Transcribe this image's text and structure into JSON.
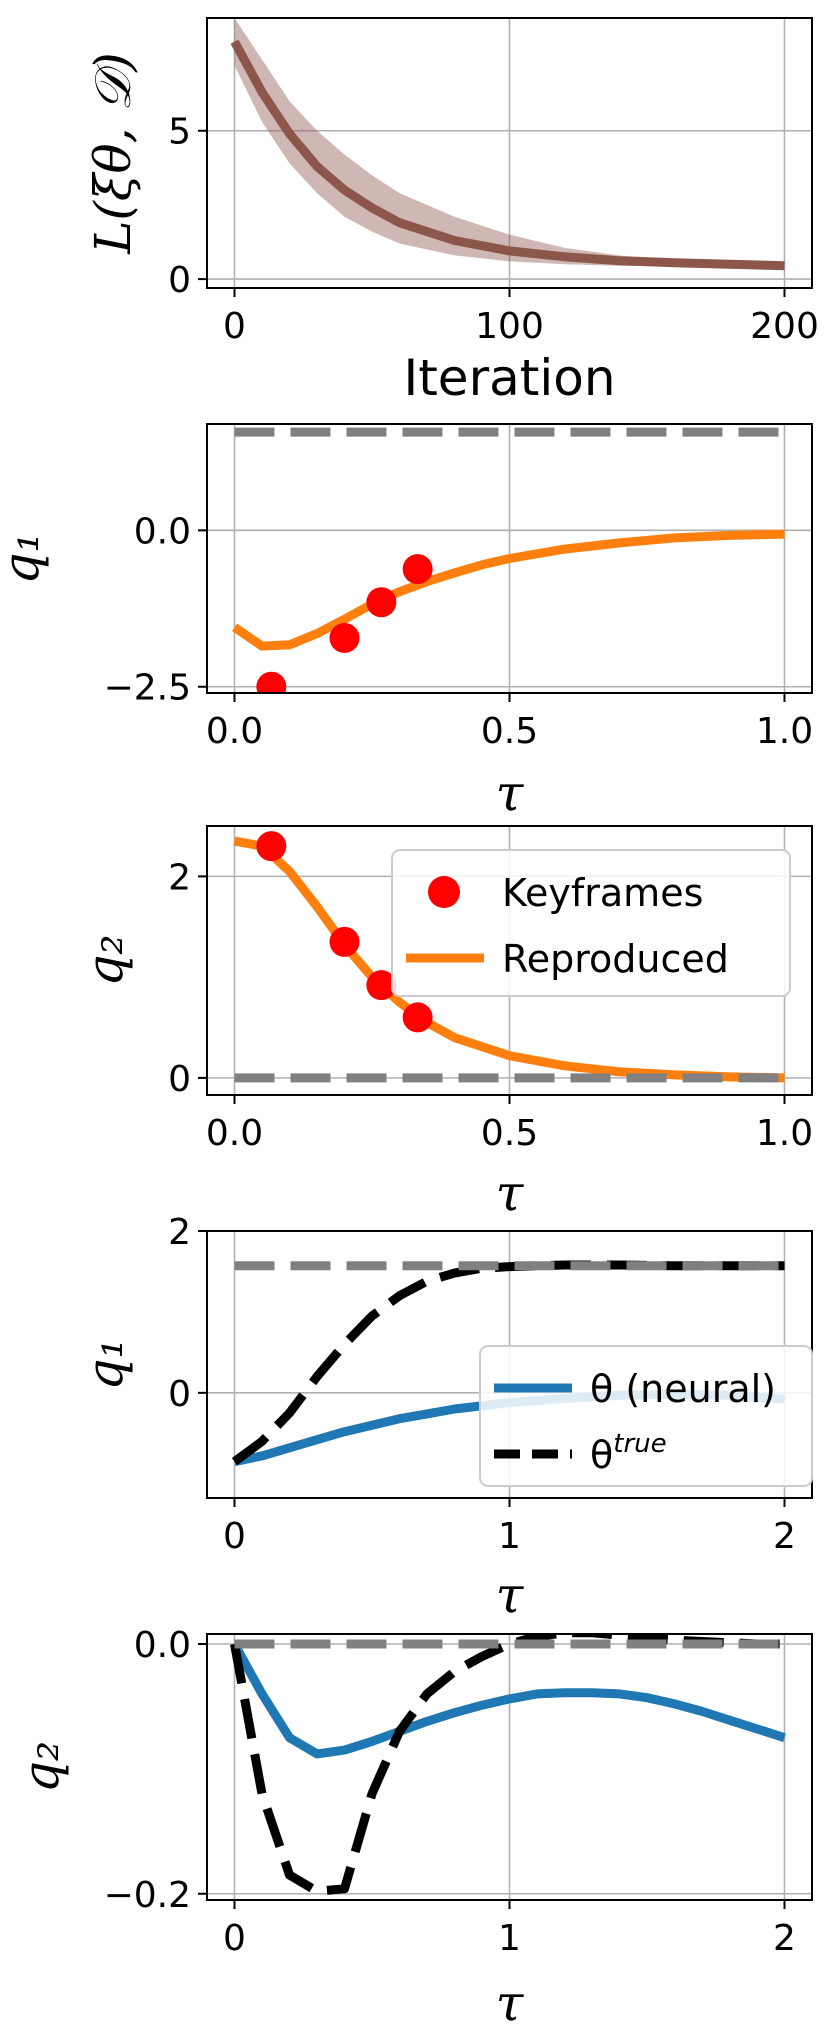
{
  "chart_data": [
    {
      "type": "line",
      "xlabel": "Iteration",
      "ylabel": "L(ξθ, 𝒟)",
      "xlim": [
        -10,
        210
      ],
      "ylim": [
        -0.3,
        8.8
      ],
      "xticks": [
        0,
        100,
        200
      ],
      "xtick_labels": [
        "0",
        "100",
        "200"
      ],
      "yticks": [
        0,
        5
      ],
      "ytick_labels": [
        "0",
        "5"
      ],
      "grid": true,
      "series": [
        {
          "color": "#8c564b",
          "band": true,
          "x": [
            0,
            10,
            20,
            30,
            40,
            50,
            60,
            80,
            100,
            120,
            140,
            160,
            180,
            200
          ],
          "y": [
            8.0,
            6.3,
            4.9,
            3.8,
            3.0,
            2.4,
            1.9,
            1.3,
            0.95,
            0.75,
            0.62,
            0.55,
            0.5,
            0.45
          ],
          "y_lower": [
            7.2,
            5.3,
            3.9,
            2.9,
            2.1,
            1.6,
            1.2,
            0.8,
            0.6,
            0.5,
            0.45,
            0.42,
            0.4,
            0.38
          ],
          "y_upper": [
            8.8,
            7.4,
            6.0,
            5.0,
            4.2,
            3.5,
            2.9,
            2.1,
            1.5,
            1.05,
            0.8,
            0.65,
            0.55,
            0.5
          ]
        }
      ]
    },
    {
      "type": "line",
      "xlabel": "τ",
      "ylabel": "q₁",
      "xlim": [
        -0.05,
        1.05
      ],
      "ylim": [
        -2.6,
        1.7
      ],
      "xticks": [
        0,
        0.5,
        1
      ],
      "xtick_labels": [
        "0.0",
        "0.5",
        "1.0"
      ],
      "yticks": [
        -2.5,
        0
      ],
      "ytick_labels": [
        "−2.5",
        "0.0"
      ],
      "grid": true,
      "series": [
        {
          "name": "Reproduced",
          "color": "#ff7f0e",
          "x": [
            0,
            0.05,
            0.1,
            0.15,
            0.2,
            0.25,
            0.3,
            0.35,
            0.4,
            0.45,
            0.5,
            0.6,
            0.7,
            0.8,
            0.9,
            1.0
          ],
          "y": [
            -1.55,
            -1.85,
            -1.83,
            -1.65,
            -1.42,
            -1.18,
            -0.98,
            -0.82,
            -0.68,
            -0.55,
            -0.45,
            -0.3,
            -0.2,
            -0.12,
            -0.08,
            -0.06
          ]
        },
        {
          "name": "Keyframes",
          "color": "#ff0000",
          "style": "scatter",
          "x": [
            0.067,
            0.2,
            0.267,
            0.333
          ],
          "y": [
            -2.5,
            -1.72,
            -1.15,
            -0.62
          ]
        },
        {
          "color": "#808080",
          "style": "dashed",
          "x": [
            0,
            1
          ],
          "y": [
            1.57,
            1.57
          ]
        }
      ]
    },
    {
      "type": "line",
      "xlabel": "τ",
      "ylabel": "q₂",
      "xlim": [
        -0.05,
        1.05
      ],
      "ylim": [
        -0.17,
        2.5
      ],
      "xticks": [
        0,
        0.5,
        1
      ],
      "xtick_labels": [
        "0.0",
        "0.5",
        "1.0"
      ],
      "yticks": [
        0,
        2
      ],
      "ytick_labels": [
        "0",
        "2"
      ],
      "grid": true,
      "legend": "upper right",
      "series": [
        {
          "name": "Reproduced",
          "color": "#ff7f0e",
          "x": [
            0,
            0.05,
            0.1,
            0.15,
            0.2,
            0.25,
            0.3,
            0.35,
            0.4,
            0.5,
            0.6,
            0.7,
            0.8,
            0.9,
            1.0
          ],
          "y": [
            2.35,
            2.3,
            2.05,
            1.7,
            1.32,
            1.0,
            0.75,
            0.55,
            0.4,
            0.22,
            0.12,
            0.06,
            0.03,
            0.01,
            0.0
          ],
          "style": "line"
        },
        {
          "name": "Keyframes",
          "color": "#ff0000",
          "style": "scatter",
          "x": [
            0.067,
            0.2,
            0.267,
            0.333
          ],
          "y": [
            2.3,
            1.35,
            0.92,
            0.6
          ]
        },
        {
          "color": "#808080",
          "style": "dashed",
          "x": [
            0,
            1
          ],
          "y": [
            0,
            0
          ]
        }
      ]
    },
    {
      "type": "line",
      "xlabel": "τ",
      "ylabel": "q₁",
      "xlim": [
        -0.1,
        2.1
      ],
      "ylim": [
        -1.3,
        2.0
      ],
      "xticks": [
        0,
        1,
        2
      ],
      "xtick_labels": [
        "0",
        "1",
        "2"
      ],
      "yticks": [
        0,
        2
      ],
      "ytick_labels": [
        "0",
        "2"
      ],
      "grid": true,
      "legend": "center right",
      "series": [
        {
          "name": "θ (neural)",
          "color": "#1f77b4",
          "x": [
            0,
            0.1,
            0.2,
            0.3,
            0.4,
            0.5,
            0.6,
            0.7,
            0.8,
            0.9,
            1.0,
            1.2,
            1.4,
            1.6,
            1.8,
            2.0
          ],
          "y": [
            -0.85,
            -0.78,
            -0.68,
            -0.58,
            -0.48,
            -0.4,
            -0.32,
            -0.26,
            -0.2,
            -0.16,
            -0.12,
            -0.07,
            -0.03,
            -0.02,
            -0.03,
            -0.08
          ]
        },
        {
          "name": "θ",
          "name_superscript": "true",
          "color": "#000000",
          "style": "dashed",
          "x": [
            0,
            0.1,
            0.2,
            0.3,
            0.4,
            0.5,
            0.6,
            0.7,
            0.8,
            0.9,
            1.0,
            1.2,
            1.4,
            1.6,
            1.8,
            2.0
          ],
          "y": [
            -0.85,
            -0.6,
            -0.25,
            0.2,
            0.6,
            0.95,
            1.2,
            1.38,
            1.48,
            1.54,
            1.56,
            1.58,
            1.58,
            1.57,
            1.57,
            1.57
          ]
        },
        {
          "color": "#808080",
          "style": "dashed",
          "x": [
            0,
            2
          ],
          "y": [
            1.57,
            1.57
          ]
        }
      ]
    },
    {
      "type": "line",
      "xlabel": "τ",
      "ylabel": "q₂",
      "xlim": [
        -0.1,
        2.1
      ],
      "ylim": [
        -0.205,
        0.008
      ],
      "xticks": [
        0,
        1,
        2
      ],
      "xtick_labels": [
        "0",
        "1",
        "2"
      ],
      "yticks": [
        -0.2,
        0
      ],
      "ytick_labels": [
        "−0.2",
        "0.0"
      ],
      "grid": true,
      "series": [
        {
          "name": "θ (neural)",
          "color": "#1f77b4",
          "x": [
            0,
            0.1,
            0.2,
            0.3,
            0.4,
            0.5,
            0.6,
            0.7,
            0.8,
            0.9,
            1.0,
            1.1,
            1.2,
            1.3,
            1.4,
            1.5,
            1.6,
            1.7,
            1.8,
            1.9,
            2.0
          ],
          "y": [
            0,
            -0.04,
            -0.075,
            -0.088,
            -0.085,
            -0.078,
            -0.07,
            -0.062,
            -0.055,
            -0.049,
            -0.044,
            -0.04,
            -0.039,
            -0.039,
            -0.04,
            -0.043,
            -0.048,
            -0.054,
            -0.061,
            -0.068,
            -0.075
          ]
        },
        {
          "name": "θ",
          "name_superscript": "true",
          "color": "#000000",
          "style": "dashed",
          "x": [
            0,
            0.1,
            0.2,
            0.3,
            0.4,
            0.5,
            0.6,
            0.7,
            0.8,
            0.9,
            1.0,
            1.1,
            1.2,
            1.3,
            1.4,
            1.5,
            1.6,
            1.7,
            1.8,
            1.9,
            2.0
          ],
          "y": [
            0,
            -0.12,
            -0.185,
            -0.198,
            -0.196,
            -0.12,
            -0.07,
            -0.04,
            -0.022,
            -0.01,
            0.0,
            0.006,
            0.009,
            0.009,
            0.007,
            0.005,
            0.003,
            0.002,
            0.001,
            0.0,
            0.0
          ]
        },
        {
          "color": "#808080",
          "style": "dashed",
          "x": [
            0,
            2
          ],
          "y": [
            0,
            0
          ]
        }
      ]
    }
  ],
  "legends": {
    "panel3": [
      {
        "label": "Keyframes",
        "color": "#ff0000",
        "marker": "dot"
      },
      {
        "label": "Reproduced",
        "color": "#ff7f0e",
        "marker": "line"
      }
    ],
    "panel4": [
      {
        "label": "θ (neural)",
        "color": "#1f77b4",
        "marker": "line"
      },
      {
        "label": "θ",
        "sup": "true",
        "color": "#000000",
        "marker": "dashed"
      }
    ]
  }
}
